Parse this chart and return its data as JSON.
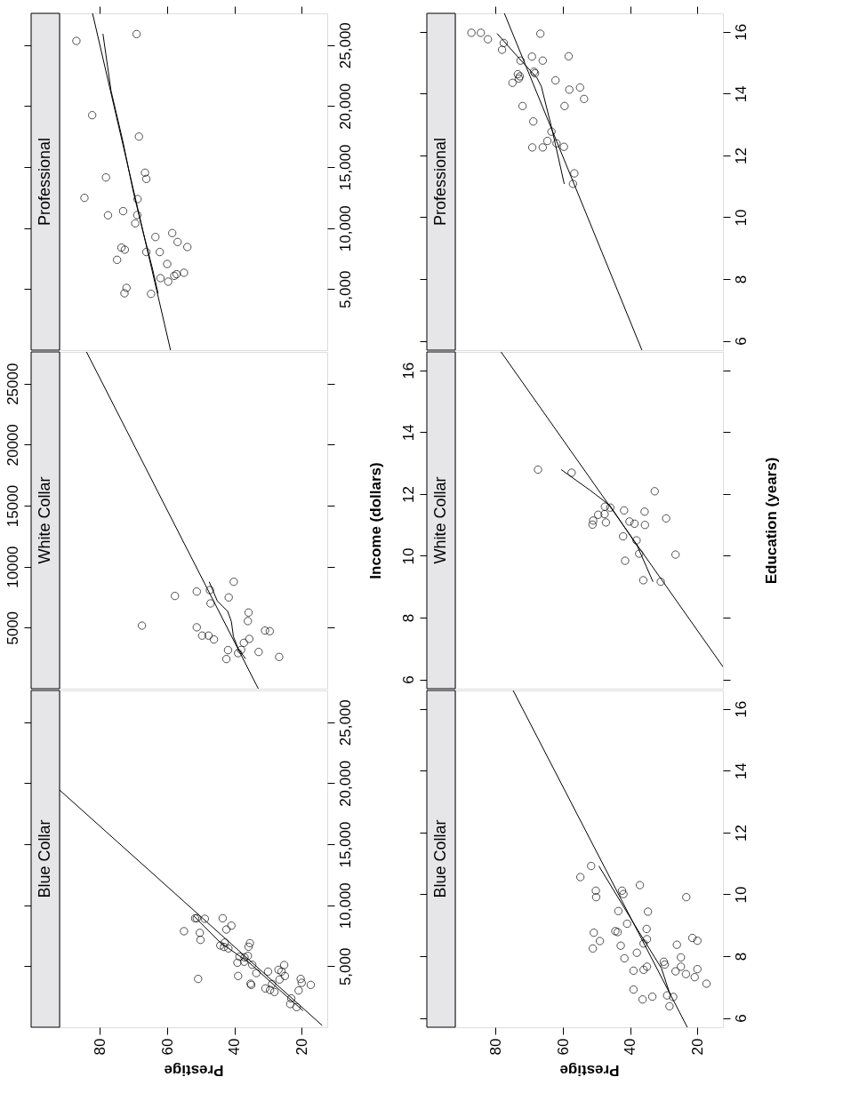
{
  "chart_data": [
    {
      "type": "scatter",
      "title": "Professional",
      "tick_labels": "y",
      "xlim": [
        92,
        12.4
      ],
      "xticks": [
        80,
        60,
        40,
        20
      ],
      "ylim": [
        0,
        27600
      ],
      "yticks": [
        {
          "value": 5000,
          "label": "5,000"
        },
        {
          "value": 10000,
          "label": "10,000"
        },
        {
          "value": 15000,
          "label": "15,000"
        },
        {
          "value": 20000,
          "label": "20,000"
        },
        {
          "value": 25000,
          "label": "25,000"
        }
      ],
      "series": [
        {
          "marker": "circle",
          "color": "#000000",
          "x": [
            87.0,
            69.1,
            82.3,
            68.4,
            78.2,
            66.6,
            66.2,
            84.6,
            68.8,
            77.6,
            73.1,
            68.9,
            69.5,
            58.5,
            63.5,
            56.9,
            54.0,
            73.6,
            72.6,
            66.2,
            62.2,
            74.9,
            60.0,
            62.0,
            59.7,
            57.9,
            57.2,
            55.0,
            72.1,
            72.7,
            64.8
          ],
          "values": [
            25340,
            25900,
            19250,
            17500,
            14150,
            14540,
            14030,
            12480,
            12380,
            11050,
            11390,
            11070,
            10390,
            9590,
            9270,
            8860,
            8450,
            8400,
            8230,
            8040,
            8040,
            7400,
            7060,
            5900,
            5610,
            6090,
            6220,
            6340,
            5100,
            4660,
            4610
          ]
        },
        {
          "type": "line",
          "color": "#000000",
          "x": [
            82.2,
            59.0
          ],
          "values": [
            27600,
            0
          ]
        },
        {
          "type": "line",
          "color": "#000000",
          "x": [
            79.1,
            76.7,
            73.2,
            70.1,
            67.1,
            64.4,
            62.7
          ],
          "values": [
            25920,
            21260,
            17140,
            13010,
            9610,
            6700,
            4640
          ]
        }
      ]
    },
    {
      "type": "scatter",
      "title": "White Collar",
      "ylabel": "Income (dollars)",
      "tick_labels": "y",
      "xlim": [
        92,
        12.4
      ],
      "ylim": [
        0,
        27600
      ],
      "yticks": [
        5000,
        10000,
        15000,
        20000,
        25000
      ],
      "series": [
        {
          "marker": "circle",
          "color": "#000000",
          "x": [
            67.5,
            57.7,
            51.2,
            47.3,
            40.2,
            47.1,
            41.7,
            35.8,
            36.0,
            51.2,
            49.6,
            47.7,
            46.1,
            30.9,
            29.5,
            35.6,
            37.2,
            41.9,
            38.9,
            38.0,
            32.8,
            42.4,
            26.7
          ],
          "values": [
            5170,
            7600,
            7960,
            8080,
            8760,
            6990,
            7480,
            6240,
            5540,
            5030,
            4350,
            4350,
            4030,
            4760,
            4710,
            4080,
            3760,
            3160,
            2910,
            3180,
            3010,
            2430,
            2600
          ]
        },
        {
          "type": "line",
          "color": "#000000",
          "x": [
            84.0,
            32.9
          ],
          "values": [
            27600,
            0
          ]
        },
        {
          "type": "line",
          "color": "#000000",
          "x": [
            47.5,
            45.1,
            42.0,
            40.9,
            40.3,
            38.9,
            36.7
          ],
          "values": [
            8760,
            7190,
            6340,
            5490,
            4270,
            3300,
            2450
          ]
        }
      ]
    },
    {
      "type": "scatter",
      "title": "Blue Collar",
      "xlabel": "Prestige",
      "xlim": [
        92,
        12.4
      ],
      "xticks": [
        80,
        60,
        40,
        20
      ],
      "ylim": [
        0,
        27600
      ],
      "yticks": [
        {
          "value": 5000,
          "label": "5,000"
        },
        {
          "value": 10000,
          "label": "10,000"
        },
        {
          "value": 15000,
          "label": "15,000"
        },
        {
          "value": 20000,
          "label": "20,000"
        },
        {
          "value": 25000,
          "label": "25,000"
        }
      ],
      "series": [
        {
          "marker": "circle",
          "color": "#000000",
          "x": [
            55.0,
            51.7,
            51.2,
            48.8,
            50.3,
            50.1,
            50.8,
            43.5,
            40.9,
            42.4,
            44.2,
            42.9,
            43.1,
            41.8,
            35.4,
            35.8,
            38.5,
            37.0,
            36.0,
            39.1,
            34.7,
            33.5,
            38.9,
            35.2,
            35.0,
            30.0,
            26.9,
            25.2,
            26.0,
            25.0,
            26.6,
            28.8,
            29.4,
            28.1,
            20.3,
            20.0,
            17.3,
            20.9,
            23.1,
            23.4,
            21.5,
            30.8,
            37.1
          ],
          "values": [
            7870,
            8930,
            8930,
            8890,
            7740,
            7160,
            3960,
            8930,
            8330,
            8010,
            6700,
            6940,
            6580,
            6460,
            6890,
            6600,
            5780,
            5730,
            5850,
            5290,
            5120,
            4440,
            4200,
            3570,
            3470,
            4560,
            4710,
            5100,
            4560,
            4200,
            3910,
            3550,
            3060,
            2890,
            3960,
            3640,
            3470,
            3010,
            2360,
            1900,
            1650,
            3180,
            5370
          ]
        },
        {
          "type": "line",
          "color": "#000000",
          "x": [
            92.0,
            13.9
          ],
          "values": [
            19440,
            150
          ]
        },
        {
          "type": "line",
          "color": "#000000",
          "x": [
            52.1,
            44.2,
            35.4,
            26.6,
            19.6
          ],
          "values": [
            9130,
            6940,
            5240,
            3060,
            1360
          ]
        }
      ]
    },
    {
      "type": "scatter",
      "title": "Professional",
      "tick_labels": "y",
      "xlim": [
        92,
        12.4
      ],
      "xticks": [
        80,
        60,
        40,
        20
      ],
      "ylim": [
        5.7,
        16.6
      ],
      "yticks": [
        6,
        8,
        10,
        12,
        14,
        16
      ],
      "series": [
        {
          "marker": "circle",
          "color": "#000000",
          "x": [
            87.2,
            84.4,
            82.3,
            77.6,
            78.1,
            66.7,
            72.6,
            69.2,
            66.0,
            58.3,
            73.4,
            73.1,
            68.6,
            68.3,
            75.0,
            62.2,
            58.1,
            54.9,
            53.7,
            72.0,
            59.5,
            68.8,
            63.4,
            64.6,
            61.9,
            69.1,
            66.0,
            59.7,
            56.6,
            57.0,
            72.8
          ],
          "values": [
            15.97,
            15.97,
            15.76,
            15.64,
            15.42,
            15.94,
            15.07,
            15.2,
            15.07,
            15.21,
            14.63,
            14.49,
            14.71,
            14.66,
            14.35,
            14.43,
            14.13,
            14.2,
            13.83,
            13.6,
            13.6,
            13.1,
            12.77,
            12.47,
            12.39,
            12.26,
            12.26,
            12.28,
            11.42,
            11.08,
            14.56
          ]
        },
        {
          "type": "line",
          "color": "#000000",
          "x": [
            77.4,
            36.5
          ],
          "values": [
            16.6,
            5.7
          ]
        },
        {
          "type": "line",
          "color": "#000000",
          "x": [
            79.6,
            73.0,
            67.7,
            66.4,
            63.3,
            59.6
          ],
          "values": [
            15.95,
            15.14,
            14.51,
            14.23,
            12.88,
            11.08
          ]
        }
      ]
    },
    {
      "type": "scatter",
      "title": "White Collar",
      "ylabel": "Education (years)",
      "tick_labels": "y",
      "xlim": [
        92,
        12.4
      ],
      "ylim": [
        5.7,
        16.6
      ],
      "yticks": [
        6,
        8,
        10,
        12,
        14,
        16
      ],
      "series": [
        {
          "marker": "circle",
          "color": "#000000",
          "x": [
            67.4,
            57.4,
            32.7,
            47.5,
            45.9,
            41.8,
            35.7,
            49.5,
            47.6,
            51.0,
            51.2,
            47.2,
            40.2,
            38.7,
            35.6,
            29.3,
            42.1,
            38.1,
            37.3,
            26.5,
            41.5,
            36.1,
            30.9
          ],
          "values": [
            12.79,
            12.69,
            12.09,
            11.59,
            11.56,
            11.47,
            11.43,
            11.33,
            11.35,
            11.14,
            11.01,
            11.08,
            11.11,
            11.04,
            11.0,
            11.21,
            10.63,
            10.5,
            10.07,
            10.04,
            9.84,
            9.21,
            9.16
          ]
        },
        {
          "type": "line",
          "color": "#000000",
          "x": [
            78.4,
            12.4
          ],
          "values": [
            16.6,
            6.41
          ]
        },
        {
          "type": "line",
          "color": "#000000",
          "x": [
            60.5,
            51.9,
            46.1,
            43.1,
            37.8,
            33.2
          ],
          "values": [
            12.79,
            12.12,
            11.64,
            11.16,
            10.3,
            9.16
          ]
        }
      ]
    },
    {
      "type": "scatter",
      "title": "Blue Collar",
      "xlabel": "Prestige",
      "xlim": [
        92,
        12.4
      ],
      "xticks": [
        80,
        60,
        40,
        20
      ],
      "ylim": [
        5.7,
        16.6
      ],
      "yticks": [
        6,
        8,
        10,
        12,
        14,
        16
      ],
      "series": [
        {
          "marker": "circle",
          "color": "#000000",
          "x": [
            54.8,
            51.6,
            50.2,
            50.1,
            42.4,
            42.0,
            37.1,
            23.3,
            43.5,
            34.7,
            40.9,
            44.4,
            43.7,
            50.8,
            49.0,
            51.1,
            35.1,
            35.0,
            36.0,
            26.1,
            21.5,
            20.0,
            42.8,
            38.0,
            41.7,
            30.0,
            29.7,
            24.9,
            24.9,
            35.0,
            36.0,
            39.0,
            26.5,
            23.4,
            20.0,
            20.8,
            17.3,
            39.0,
            36.3,
            33.4,
            29.0,
            27.2,
            28.3
          ],
          "values": [
            10.56,
            10.92,
            10.12,
            9.91,
            10.12,
            10.01,
            10.3,
            9.91,
            9.46,
            9.44,
            9.05,
            8.81,
            8.78,
            8.76,
            8.49,
            8.25,
            8.88,
            8.55,
            8.41,
            8.37,
            8.59,
            8.5,
            8.34,
            8.11,
            7.93,
            7.82,
            7.73,
            7.96,
            7.66,
            7.66,
            7.56,
            7.53,
            7.51,
            7.42,
            7.58,
            7.32,
            7.11,
            6.92,
            6.6,
            6.69,
            6.73,
            6.68,
            6.38
          ]
        },
        {
          "type": "line",
          "color": "#000000",
          "x": [
            74.8,
            23.0
          ],
          "values": [
            16.6,
            5.7
          ]
        },
        {
          "type": "line",
          "color": "#000000",
          "x": [
            49.3,
            37.8,
            30.7,
            28.1
          ],
          "values": [
            10.92,
            8.86,
            7.61,
            6.75
          ]
        }
      ]
    }
  ]
}
